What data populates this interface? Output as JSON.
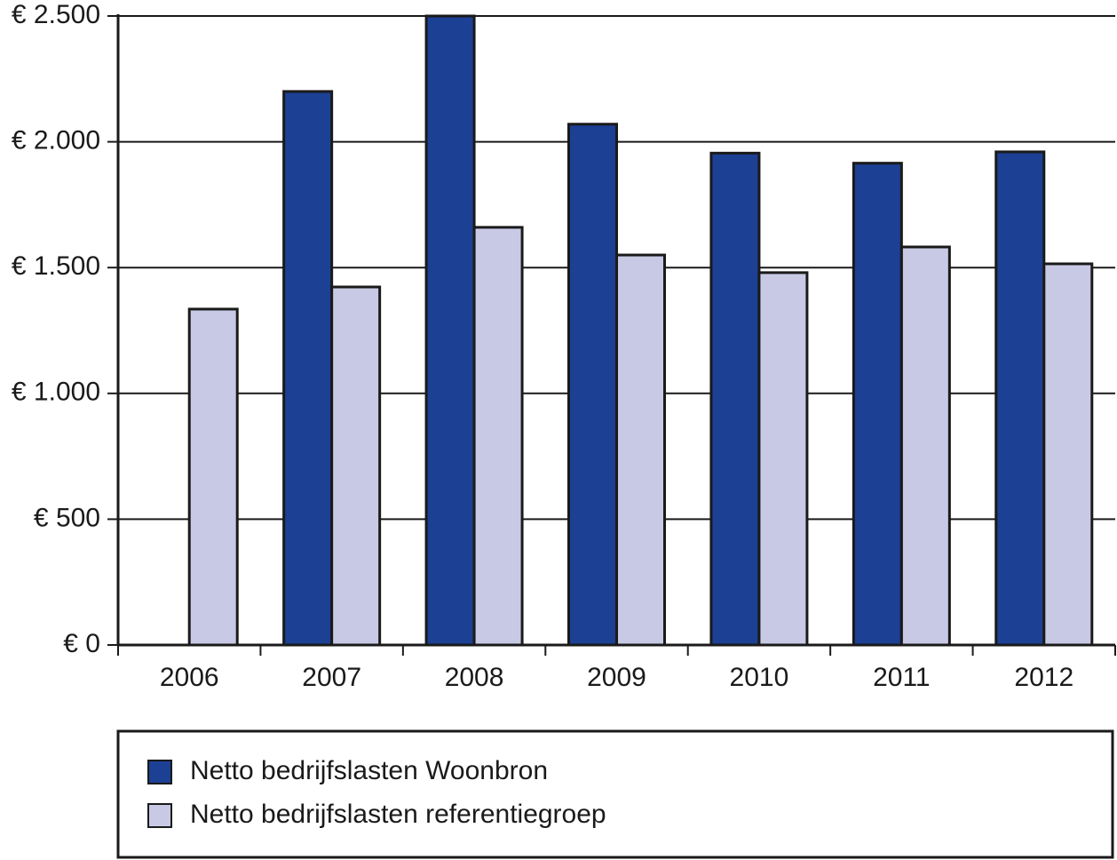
{
  "chart_data": {
    "type": "bar",
    "categories": [
      "2006",
      "2007",
      "2008",
      "2009",
      "2010",
      "2011",
      "2012"
    ],
    "series": [
      {
        "name": "Netto bedrijfslasten Woonbron",
        "color": "#1c4094",
        "values": [
          null,
          2200,
          2500,
          2070,
          1955,
          1915,
          1960
        ]
      },
      {
        "name": "Netto bedrijfslasten referentiegroep",
        "color": "#c8c9e4",
        "values": [
          1335,
          1423,
          1660,
          1550,
          1480,
          1582,
          1515
        ]
      }
    ],
    "ylim": [
      0,
      2500
    ],
    "yticks": [
      {
        "value": 0,
        "label": "€ 0"
      },
      {
        "value": 500,
        "label": "€ 500"
      },
      {
        "value": 1000,
        "label": "€ 1.000"
      },
      {
        "value": 1500,
        "label": "€ 1.500"
      },
      {
        "value": 2000,
        "label": "€ 2.000"
      },
      {
        "value": 2500,
        "label": "€ 2.500"
      }
    ],
    "grid": true
  }
}
